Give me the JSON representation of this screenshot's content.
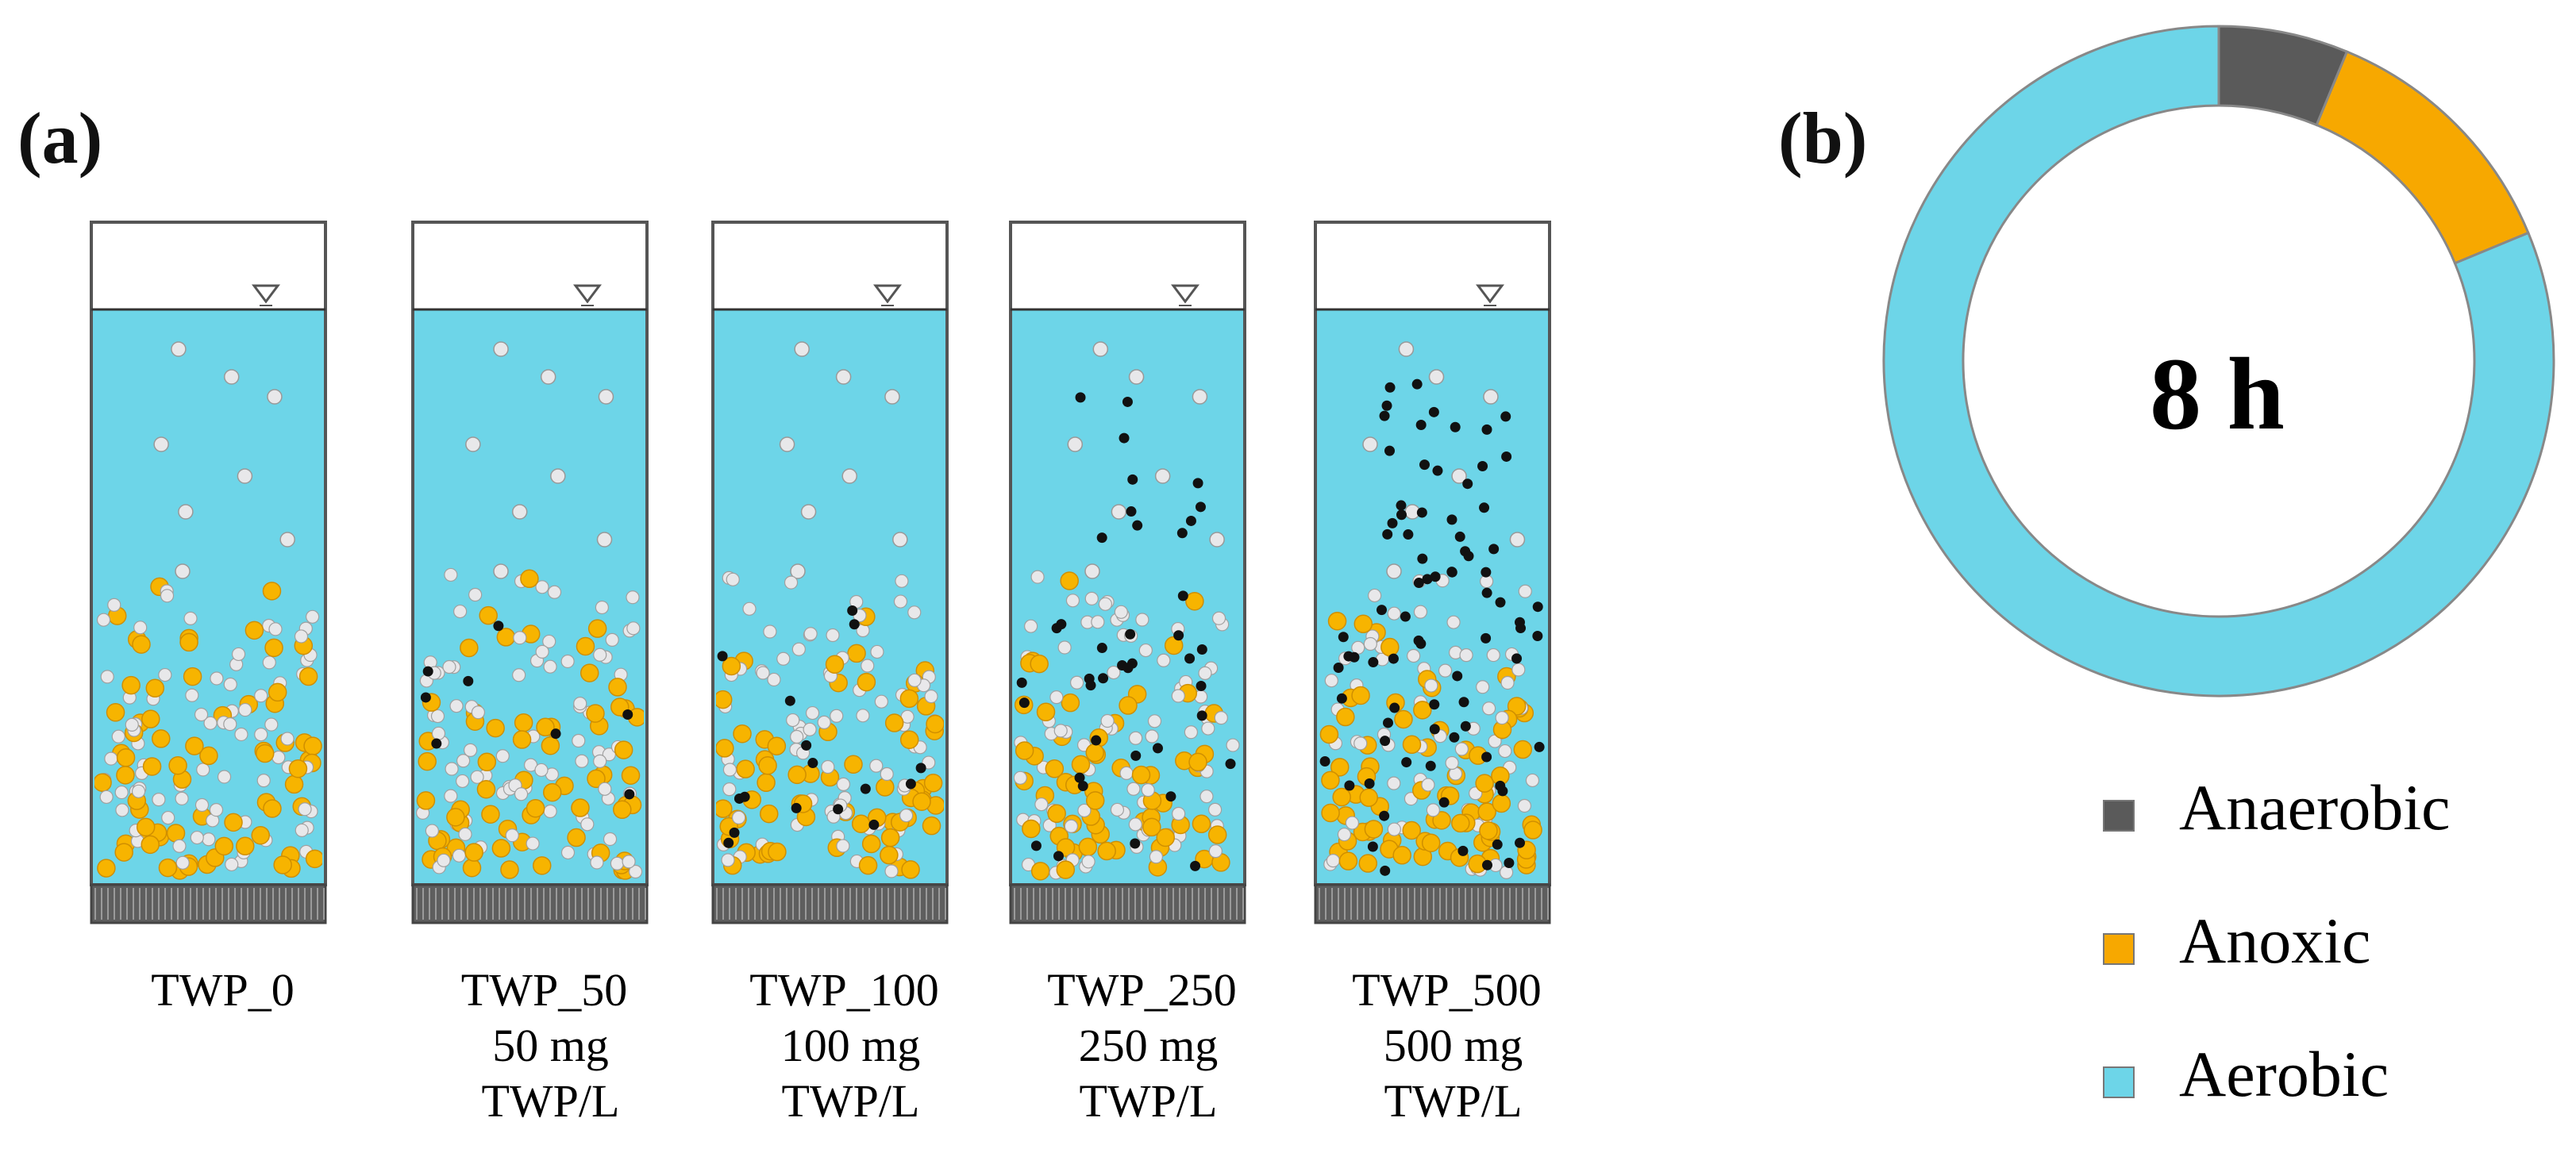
{
  "panel_a": {
    "label": "(a)",
    "reactors": [
      {
        "name": "TWP_0",
        "dose": "",
        "unit": "",
        "twp_level": 0
      },
      {
        "name": "TWP_50",
        "dose": "50 mg",
        "unit": "TWP/L",
        "twp_level": 50
      },
      {
        "name": "TWP_100",
        "dose": "100 mg",
        "unit": "TWP/L",
        "twp_level": 100
      },
      {
        "name": "TWP_250",
        "dose": "250 mg",
        "unit": "TWP/L",
        "twp_level": 250
      },
      {
        "name": "TWP_500",
        "dose": "500 mg",
        "unit": "TWP/L",
        "twp_level": 500
      }
    ]
  },
  "panel_b": {
    "label": "(b)",
    "center_text": "8 h",
    "legend": [
      {
        "label": "Anaerobic",
        "color": "#5a5a5a"
      },
      {
        "label": "Anoxic",
        "color": "#f7a800"
      },
      {
        "label": "Aerobic",
        "color": "#6dd5e8"
      }
    ]
  },
  "chart_data": {
    "type": "pie",
    "center_label": "8 h",
    "slices": [
      {
        "label": "Anaerobic",
        "value": 6.25,
        "color": "#5a5a5a"
      },
      {
        "label": "Anoxic",
        "value": 12.5,
        "color": "#f7a800"
      },
      {
        "label": "Aerobic",
        "value": 81.25,
        "color": "#6dd5e8"
      }
    ],
    "legend_position": "bottom"
  },
  "colors": {
    "water": "#6dd5e8",
    "sludge": "#f7b400",
    "bubble": "#e8e8ea",
    "twp_particle": "#111111",
    "diffuser": "#5e5e5e"
  }
}
